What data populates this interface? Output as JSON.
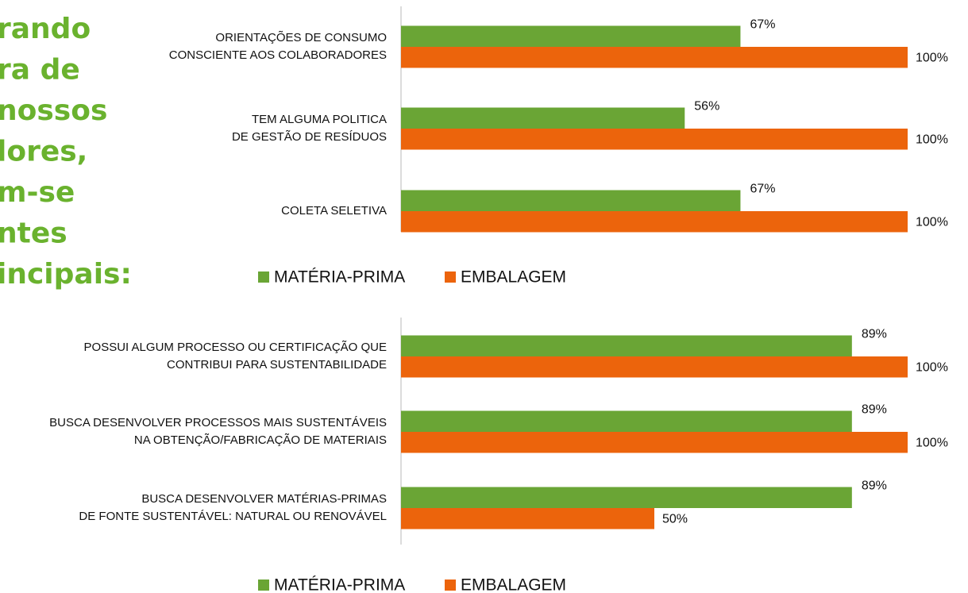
{
  "side_text": [
    "rando",
    "ra de",
    "nossos",
    "lores,",
    "m-se",
    "ntes",
    "incipais:"
  ],
  "chart_data": [
    {
      "type": "bar",
      "orientation": "horizontal",
      "categories": [
        [
          "ORIENTAÇÕES DE CONSUMO",
          "CONSCIENTE AOS COLABORADORES"
        ],
        [
          "TEM ALGUMA POLITICA",
          "DE GESTÃO DE RESÍDUOS"
        ],
        [
          "COLETA SELETIVA"
        ]
      ],
      "series": [
        {
          "name": "MATÉRIA-PRIMA",
          "color": "#6aa535",
          "values": [
            67,
            56,
            67
          ],
          "value_labels": [
            "67%",
            "56%",
            "67%"
          ]
        },
        {
          "name": "EMBALAGEM",
          "color": "#ec640c",
          "values": [
            100,
            100,
            100
          ],
          "value_labels": [
            "100%",
            "100%",
            "100%"
          ]
        }
      ],
      "xlim": [
        0,
        100
      ],
      "legend": "bottom"
    },
    {
      "type": "bar",
      "orientation": "horizontal",
      "categories": [
        [
          "POSSUI ALGUM PROCESSO OU CERTIFICAÇÃO QUE",
          "CONTRIBUI PARA SUSTENTABILIDADE"
        ],
        [
          "BUSCA DESENVOLVER PROCESSOS MAIS SUSTENTÁVEIS",
          "NA OBTENÇÃO/FABRICAÇÃO DE MATERIAIS"
        ],
        [
          "BUSCA DESENVOLVER MATÉRIAS-PRIMAS",
          "DE FONTE SUSTENTÁVEL: NATURAL OU RENOVÁVEL"
        ]
      ],
      "series": [
        {
          "name": "MATÉRIA-PRIMA",
          "color": "#6aa535",
          "values": [
            89,
            89,
            89
          ],
          "value_labels": [
            "89%",
            "89%",
            "89%"
          ]
        },
        {
          "name": "EMBALAGEM",
          "color": "#ec640c",
          "values": [
            100,
            100,
            50
          ],
          "value_labels": [
            "100%",
            "100%",
            "50%"
          ]
        }
      ],
      "xlim": [
        0,
        100
      ],
      "legend": "bottom"
    }
  ]
}
